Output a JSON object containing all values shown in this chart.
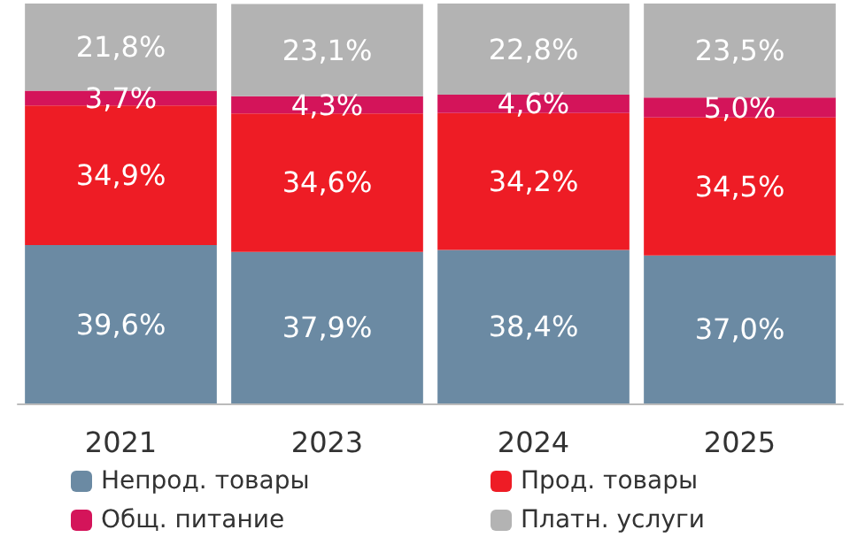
{
  "chart_data": {
    "type": "bar",
    "stacked": true,
    "categories": [
      "2021",
      "2023",
      "2024",
      "2025"
    ],
    "legend": "bottom",
    "grid": false,
    "series": [
      {
        "name": "Непрод. товары",
        "color": "#6b8aa3",
        "values": [
          39.6,
          37.9,
          38.4,
          37.0
        ],
        "value_labels": [
          "39,6%",
          "37,9%",
          "38,4%",
          "37,0%"
        ]
      },
      {
        "name": "Прод. товары",
        "color": "#ee1c25",
        "values": [
          34.9,
          34.6,
          34.2,
          34.5
        ],
        "value_labels": [
          "34,9%",
          "34,6%",
          "34,2%",
          "34,5%"
        ]
      },
      {
        "name": "Общ. питание",
        "color": "#d4145a",
        "values": [
          3.7,
          4.3,
          4.6,
          5.0
        ],
        "value_labels": [
          "3,7%",
          "4,3%",
          "4,6%",
          "5,0%"
        ]
      },
      {
        "name": "Платн. услуги",
        "color": "#b3b3b3",
        "values": [
          21.8,
          23.1,
          22.8,
          23.5
        ],
        "value_labels": [
          "21,8%",
          "23,1%",
          "22,8%",
          "23,5%"
        ]
      }
    ]
  }
}
